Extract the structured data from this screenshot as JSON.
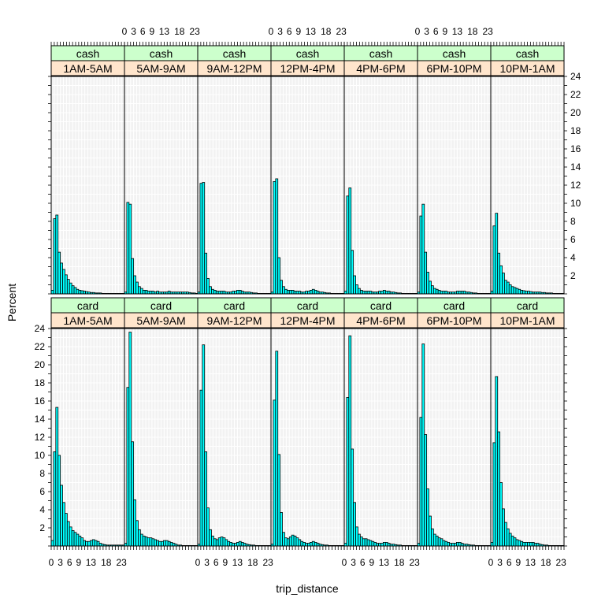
{
  "chart_data": {
    "type": "bar",
    "xlabel": "trip_distance",
    "ylabel": "Percent",
    "xlim": [
      0,
      24
    ],
    "ylim": [
      0,
      24
    ],
    "x_ticks": [
      0,
      3,
      6,
      9,
      13,
      18,
      23
    ],
    "y_ticks": [
      2,
      4,
      6,
      8,
      10,
      12,
      14,
      16,
      18,
      20,
      22,
      24
    ],
    "x_tick_labels": "0 3 6 9 13 18 23",
    "bin_start": 0,
    "bin_width": 0.75,
    "grid": true,
    "colors": {
      "bar": "#00FFFF",
      "strip_top": "#CCFFCC",
      "strip_bottom": "#FFE5CC",
      "grid": "#E6E6E6",
      "panel_bg": "#F2F2F2"
    },
    "rows": [
      {
        "payment": "cash",
        "panels": [
          {
            "time": "1AM-5AM",
            "values": [
              0.4,
              8.3,
              8.7,
              4.6,
              3.4,
              2.7,
              2.1,
              1.6,
              1.2,
              0.9,
              0.7,
              0.5,
              0.4,
              0.35,
              0.3,
              0.25,
              0.2,
              0.15,
              0.15,
              0.1,
              0.1,
              0.1,
              0.05,
              0.05,
              0.05,
              0.05,
              0.05,
              0.05,
              0.05,
              0.05,
              0.05,
              0.05
            ]
          },
          {
            "time": "5AM-9AM",
            "values": [
              0.2,
              10.1,
              9.9,
              3.9,
              2.0,
              1.3,
              0.8,
              0.6,
              0.4,
              0.4,
              0.3,
              0.3,
              0.3,
              0.2,
              0.3,
              0.2,
              0.2,
              0.2,
              0.2,
              0.3,
              0.2,
              0.2,
              0.2,
              0.2,
              0.2,
              0.2,
              0.2,
              0.2,
              0.15,
              0.1,
              0.1,
              0.05
            ]
          },
          {
            "time": "9AM-12PM",
            "values": [
              0.2,
              12.2,
              12.3,
              4.5,
              1.7,
              0.8,
              0.5,
              0.4,
              0.3,
              0.3,
              0.3,
              0.3,
              0.2,
              0.2,
              0.2,
              0.3,
              0.3,
              0.4,
              0.4,
              0.3,
              0.2,
              0.2,
              0.2,
              0.15,
              0.1,
              0.1,
              0.05,
              0.05,
              0.05,
              0.05,
              0.05,
              0.05
            ]
          },
          {
            "time": "12PM-4PM",
            "values": [
              0.2,
              12.4,
              12.7,
              4.0,
              1.5,
              0.8,
              0.5,
              0.4,
              0.4,
              0.4,
              0.3,
              0.3,
              0.3,
              0.2,
              0.2,
              0.3,
              0.3,
              0.4,
              0.5,
              0.4,
              0.3,
              0.2,
              0.2,
              0.15,
              0.1,
              0.1,
              0.05,
              0.05,
              0.05,
              0.05,
              0.05,
              0.05
            ]
          },
          {
            "time": "4PM-6PM",
            "values": [
              0.3,
              10.8,
              11.7,
              4.8,
              2.0,
              1.0,
              0.6,
              0.4,
              0.3,
              0.3,
              0.3,
              0.3,
              0.2,
              0.2,
              0.2,
              0.3,
              0.3,
              0.4,
              0.3,
              0.3,
              0.2,
              0.2,
              0.15,
              0.1,
              0.1,
              0.05,
              0.05,
              0.05,
              0.05,
              0.05,
              0.05,
              0.05
            ]
          },
          {
            "time": "6PM-10PM",
            "values": [
              0.2,
              8.6,
              9.9,
              4.6,
              2.4,
              1.4,
              0.9,
              0.6,
              0.5,
              0.4,
              0.3,
              0.3,
              0.3,
              0.2,
              0.2,
              0.2,
              0.2,
              0.3,
              0.3,
              0.3,
              0.3,
              0.2,
              0.2,
              0.15,
              0.1,
              0.1,
              0.05,
              0.05,
              0.05,
              0.05,
              0.05,
              0.05
            ]
          },
          {
            "time": "10PM-1AM",
            "values": [
              0.3,
              7.5,
              8.9,
              4.5,
              3.1,
              2.3,
              1.5,
              1.3,
              1.0,
              0.8,
              0.7,
              0.6,
              0.5,
              0.4,
              0.35,
              0.3,
              0.3,
              0.25,
              0.2,
              0.2,
              0.2,
              0.2,
              0.15,
              0.15,
              0.1,
              0.1,
              0.1,
              0.05,
              0.05,
              0.05,
              0.05,
              0.05
            ]
          }
        ]
      },
      {
        "payment": "card",
        "panels": [
          {
            "time": "1AM-5AM",
            "values": [
              0.6,
              10.4,
              15.3,
              10.0,
              6.7,
              4.8,
              3.6,
              2.7,
              2.1,
              1.7,
              1.5,
              1.3,
              1.1,
              0.9,
              0.6,
              0.5,
              0.5,
              0.6,
              0.7,
              0.6,
              0.5,
              0.3,
              0.2,
              0.15,
              0.1,
              0.1,
              0.1,
              0.1,
              0.1,
              0.1,
              0.1,
              0.1
            ]
          },
          {
            "time": "5AM-9AM",
            "values": [
              0.3,
              17.5,
              23.6,
              11.5,
              5.1,
              2.8,
              1.8,
              1.3,
              1.1,
              1.0,
              0.9,
              0.9,
              0.8,
              0.7,
              0.6,
              0.5,
              0.5,
              0.6,
              0.6,
              0.5,
              0.4,
              0.3,
              0.2,
              0.1,
              0.1,
              0.05,
              0.05,
              0.05,
              0.05,
              0.05,
              0.05,
              0.05
            ]
          },
          {
            "time": "9AM-12PM",
            "values": [
              0.2,
              17.2,
              22.2,
              10.4,
              4.2,
              1.8,
              1.1,
              0.8,
              0.7,
              0.9,
              1.0,
              0.9,
              0.7,
              0.5,
              0.4,
              0.3,
              0.3,
              0.4,
              0.5,
              0.4,
              0.3,
              0.2,
              0.15,
              0.1,
              0.1,
              0.05,
              0.05,
              0.05,
              0.05,
              0.05,
              0.05,
              0.05
            ]
          },
          {
            "time": "12PM-4PM",
            "values": [
              0.2,
              16.1,
              21.5,
              10.1,
              3.7,
              1.5,
              0.9,
              0.8,
              1.0,
              1.2,
              1.1,
              0.9,
              0.7,
              0.5,
              0.4,
              0.3,
              0.3,
              0.4,
              0.5,
              0.4,
              0.3,
              0.2,
              0.15,
              0.1,
              0.1,
              0.05,
              0.05,
              0.05,
              0.05,
              0.05,
              0.05,
              0.05
            ]
          },
          {
            "time": "4PM-6PM",
            "values": [
              0.3,
              16.4,
              23.2,
              10.7,
              4.8,
              2.1,
              1.3,
              1.0,
              0.8,
              0.8,
              0.7,
              0.6,
              0.5,
              0.4,
              0.3,
              0.3,
              0.3,
              0.4,
              0.4,
              0.3,
              0.2,
              0.2,
              0.15,
              0.1,
              0.1,
              0.05,
              0.05,
              0.05,
              0.05,
              0.05,
              0.05,
              0.05
            ]
          },
          {
            "time": "6PM-10PM",
            "values": [
              0.3,
              14.2,
              22.3,
              12.3,
              6.3,
              3.3,
              1.9,
              1.3,
              1.1,
              0.9,
              0.8,
              0.6,
              0.5,
              0.4,
              0.3,
              0.3,
              0.3,
              0.4,
              0.4,
              0.3,
              0.2,
              0.2,
              0.15,
              0.1,
              0.1,
              0.05,
              0.05,
              0.05,
              0.05,
              0.05,
              0.05,
              0.05
            ]
          },
          {
            "time": "10PM-1AM",
            "values": [
              0.4,
              11.4,
              18.7,
              12.6,
              7.0,
              4.1,
              2.6,
              1.9,
              1.4,
              1.1,
              0.9,
              0.7,
              0.6,
              0.5,
              0.4,
              0.4,
              0.4,
              0.4,
              0.4,
              0.3,
              0.3,
              0.2,
              0.15,
              0.1,
              0.1,
              0.05,
              0.05,
              0.05,
              0.05,
              0.05,
              0.05,
              0.05
            ]
          }
        ]
      }
    ]
  }
}
